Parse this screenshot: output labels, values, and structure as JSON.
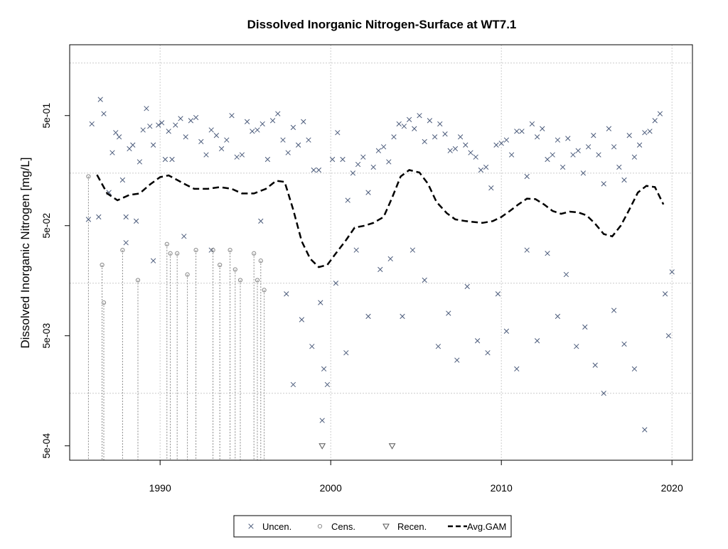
{
  "chart_data": {
    "type": "scatter",
    "title": "Dissolved Inorganic Nitrogen-Surface at WT7.1",
    "xlabel": "",
    "ylabel": "Dissolved Inorganic Nitrogen [mg/L]",
    "y_scale": "log10",
    "xlim": [
      1984.7,
      2021.2
    ],
    "ylim": [
      0.00037,
      2.2
    ],
    "x_ticks": [
      1990,
      2000,
      2010,
      2020
    ],
    "x_tick_labels": [
      "1990",
      "2000",
      "2010",
      "2020"
    ],
    "y_ticks": [
      0.0005,
      0.005,
      0.05,
      0.5
    ],
    "y_tick_labels": [
      "5e-04",
      "5e-03",
      "5e-02",
      "5e-01"
    ],
    "y_grid": [
      0.0015,
      0.015,
      0.15,
      1.5
    ],
    "grid": true,
    "legend": {
      "position": "bottom-center",
      "entries": [
        {
          "label": "Uncen.",
          "symbol": "x",
          "color": "#4a5a7a"
        },
        {
          "label": "Cens.",
          "symbol": "o",
          "color": "#909090"
        },
        {
          "label": "Recen.",
          "symbol": "triangle-down",
          "color": "#555555"
        },
        {
          "label": "Avg.GAM",
          "symbol": "dashed-line",
          "color": "#000000"
        }
      ]
    },
    "series": [
      {
        "name": "Uncen.",
        "points": [
          [
            1985.8,
            0.057
          ],
          [
            1986.0,
            0.42
          ],
          [
            1986.5,
            0.7
          ],
          [
            1986.7,
            0.52
          ],
          [
            1987.0,
            0.1
          ],
          [
            1987.2,
            0.23
          ],
          [
            1987.4,
            0.35
          ],
          [
            1987.6,
            0.32
          ],
          [
            1987.8,
            0.13
          ],
          [
            1988.0,
            0.06
          ],
          [
            1988.2,
            0.25
          ],
          [
            1988.4,
            0.27
          ],
          [
            1988.6,
            0.055
          ],
          [
            1988.8,
            0.19
          ],
          [
            1989.0,
            0.37
          ],
          [
            1989.2,
            0.58
          ],
          [
            1989.4,
            0.4
          ],
          [
            1989.6,
            0.27
          ],
          [
            1989.9,
            0.41
          ],
          [
            1990.1,
            0.43
          ],
          [
            1990.3,
            0.2
          ],
          [
            1990.5,
            0.36
          ],
          [
            1990.7,
            0.2
          ],
          [
            1990.9,
            0.41
          ],
          [
            1991.2,
            0.47
          ],
          [
            1991.5,
            0.32
          ],
          [
            1991.8,
            0.45
          ],
          [
            1992.1,
            0.48
          ],
          [
            1992.4,
            0.29
          ],
          [
            1992.7,
            0.22
          ],
          [
            1993.0,
            0.37
          ],
          [
            1993.3,
            0.33
          ],
          [
            1993.6,
            0.25
          ],
          [
            1993.9,
            0.3
          ],
          [
            1994.2,
            0.5
          ],
          [
            1994.5,
            0.21
          ],
          [
            1994.8,
            0.22
          ],
          [
            1995.1,
            0.44
          ],
          [
            1995.4,
            0.36
          ],
          [
            1995.7,
            0.37
          ],
          [
            1996.0,
            0.42
          ],
          [
            1996.3,
            0.2
          ],
          [
            1996.6,
            0.45
          ],
          [
            1996.9,
            0.52
          ],
          [
            1997.2,
            0.3
          ],
          [
            1997.5,
            0.23
          ],
          [
            1997.8,
            0.39
          ],
          [
            1998.1,
            0.27
          ],
          [
            1998.4,
            0.44
          ],
          [
            1998.7,
            0.3
          ],
          [
            1999.0,
            0.16
          ],
          [
            1999.3,
            0.16
          ],
          [
            1999.5,
            0.00085
          ],
          [
            1999.6,
            0.0025
          ],
          [
            1999.8,
            0.0018
          ],
          [
            2000.1,
            0.2
          ],
          [
            2000.4,
            0.35
          ],
          [
            2000.7,
            0.2
          ],
          [
            2001.0,
            0.085
          ],
          [
            2001.3,
            0.15
          ],
          [
            2001.6,
            0.18
          ],
          [
            2001.9,
            0.21
          ],
          [
            2002.2,
            0.1
          ],
          [
            2002.5,
            0.17
          ],
          [
            2002.8,
            0.24
          ],
          [
            2003.1,
            0.26
          ],
          [
            2003.4,
            0.19
          ],
          [
            2003.7,
            0.32
          ],
          [
            2004.0,
            0.42
          ],
          [
            2004.3,
            0.4
          ],
          [
            2004.6,
            0.46
          ],
          [
            2004.9,
            0.38
          ],
          [
            2005.2,
            0.5
          ],
          [
            2005.5,
            0.29
          ],
          [
            2005.8,
            0.45
          ],
          [
            2006.1,
            0.32
          ],
          [
            2006.4,
            0.42
          ],
          [
            2006.7,
            0.34
          ],
          [
            2007.0,
            0.24
          ],
          [
            2007.3,
            0.25
          ],
          [
            2007.6,
            0.32
          ],
          [
            2007.9,
            0.27
          ],
          [
            2008.2,
            0.23
          ],
          [
            2008.5,
            0.21
          ],
          [
            2008.8,
            0.16
          ],
          [
            2009.1,
            0.17
          ],
          [
            2009.4,
            0.11
          ],
          [
            2009.7,
            0.27
          ],
          [
            2010.0,
            0.28
          ],
          [
            2010.3,
            0.3
          ],
          [
            2010.6,
            0.22
          ],
          [
            2010.9,
            0.36
          ],
          [
            2011.2,
            0.36
          ],
          [
            2011.5,
            0.14
          ],
          [
            2011.8,
            0.42
          ],
          [
            2012.1,
            0.32
          ],
          [
            2012.4,
            0.38
          ],
          [
            2012.7,
            0.2
          ],
          [
            2013.0,
            0.22
          ],
          [
            2013.3,
            0.3
          ],
          [
            2013.6,
            0.17
          ],
          [
            2013.9,
            0.31
          ],
          [
            2014.2,
            0.22
          ],
          [
            2014.5,
            0.24
          ],
          [
            2014.8,
            0.15
          ],
          [
            2015.1,
            0.26
          ],
          [
            2015.4,
            0.33
          ],
          [
            2015.7,
            0.22
          ],
          [
            2016.0,
            0.12
          ],
          [
            2016.3,
            0.38
          ],
          [
            2016.6,
            0.26
          ],
          [
            2016.9,
            0.17
          ],
          [
            2017.2,
            0.13
          ],
          [
            2017.5,
            0.33
          ],
          [
            2017.8,
            0.21
          ],
          [
            2018.1,
            0.27
          ],
          [
            2018.4,
            0.35
          ],
          [
            2018.7,
            0.36
          ],
          [
            2019.0,
            0.45
          ],
          [
            2019.3,
            0.52
          ],
          [
            2019.6,
            0.012
          ],
          [
            2019.8,
            0.005
          ],
          [
            2020.0,
            0.019
          ],
          [
            1986.4,
            0.06
          ],
          [
            1988.0,
            0.035
          ],
          [
            1989.6,
            0.024
          ],
          [
            1991.4,
            0.04
          ],
          [
            1993.0,
            0.03
          ],
          [
            1995.9,
            0.055
          ],
          [
            1997.4,
            0.012
          ],
          [
            1997.8,
            0.0018
          ],
          [
            1998.3,
            0.007
          ],
          [
            1998.9,
            0.004
          ],
          [
            1999.4,
            0.01
          ],
          [
            2000.3,
            0.015
          ],
          [
            2000.9,
            0.0035
          ],
          [
            2001.5,
            0.03
          ],
          [
            2002.2,
            0.0075
          ],
          [
            2002.9,
            0.02
          ],
          [
            2003.5,
            0.025
          ],
          [
            2004.2,
            0.0075
          ],
          [
            2004.8,
            0.03
          ],
          [
            2005.5,
            0.016
          ],
          [
            2006.3,
            0.004
          ],
          [
            2006.9,
            0.008
          ],
          [
            2007.4,
            0.003
          ],
          [
            2008.0,
            0.014
          ],
          [
            2008.6,
            0.0045
          ],
          [
            2009.2,
            0.0035
          ],
          [
            2009.8,
            0.012
          ],
          [
            2010.3,
            0.0055
          ],
          [
            2010.9,
            0.0025
          ],
          [
            2011.5,
            0.03
          ],
          [
            2012.1,
            0.0045
          ],
          [
            2012.7,
            0.028
          ],
          [
            2013.3,
            0.0075
          ],
          [
            2013.8,
            0.018
          ],
          [
            2014.4,
            0.004
          ],
          [
            2014.9,
            0.006
          ],
          [
            2015.5,
            0.0027
          ],
          [
            2016.0,
            0.0015
          ],
          [
            2016.6,
            0.0085
          ],
          [
            2017.2,
            0.0042
          ],
          [
            2017.8,
            0.0025
          ],
          [
            2018.4,
            0.0007
          ]
        ]
      },
      {
        "name": "Cens.",
        "points": [
          [
            1985.8,
            0.14
          ],
          [
            1986.6,
            0.022
          ],
          [
            1986.7,
            0.01
          ],
          [
            1987.8,
            0.03
          ],
          [
            1988.7,
            0.016
          ],
          [
            1990.4,
            0.034
          ],
          [
            1990.6,
            0.028
          ],
          [
            1991.0,
            0.028
          ],
          [
            1991.6,
            0.018
          ],
          [
            1992.1,
            0.03
          ],
          [
            1993.1,
            0.03
          ],
          [
            1993.5,
            0.022
          ],
          [
            1994.1,
            0.03
          ],
          [
            1994.4,
            0.02
          ],
          [
            1994.7,
            0.016
          ],
          [
            1995.5,
            0.028
          ],
          [
            1995.7,
            0.016
          ],
          [
            1995.9,
            0.024
          ],
          [
            1996.1,
            0.013
          ]
        ]
      },
      {
        "name": "Recen.",
        "points": [
          [
            1999.5,
            0.0005
          ],
          [
            2003.6,
            0.0005
          ]
        ]
      },
      {
        "name": "Avg.GAM",
        "points": [
          [
            1986.3,
            0.145
          ],
          [
            1986.9,
            0.098
          ],
          [
            1987.5,
            0.085
          ],
          [
            1988.2,
            0.095
          ],
          [
            1988.8,
            0.098
          ],
          [
            1989.4,
            0.118
          ],
          [
            1990.0,
            0.138
          ],
          [
            1990.5,
            0.143
          ],
          [
            1991.0,
            0.13
          ],
          [
            1991.5,
            0.118
          ],
          [
            1992.0,
            0.108
          ],
          [
            1992.8,
            0.108
          ],
          [
            1993.5,
            0.112
          ],
          [
            1994.2,
            0.108
          ],
          [
            1994.8,
            0.098
          ],
          [
            1995.5,
            0.098
          ],
          [
            1996.2,
            0.108
          ],
          [
            1996.8,
            0.128
          ],
          [
            1997.3,
            0.125
          ],
          [
            1997.8,
            0.07
          ],
          [
            1998.3,
            0.036
          ],
          [
            1998.8,
            0.025
          ],
          [
            1999.3,
            0.021
          ],
          [
            1999.8,
            0.022
          ],
          [
            2000.3,
            0.028
          ],
          [
            2000.9,
            0.037
          ],
          [
            2001.4,
            0.048
          ],
          [
            2002.0,
            0.05
          ],
          [
            2002.5,
            0.053
          ],
          [
            2003.1,
            0.06
          ],
          [
            2003.6,
            0.09
          ],
          [
            2004.1,
            0.14
          ],
          [
            2004.6,
            0.16
          ],
          [
            2005.2,
            0.152
          ],
          [
            2005.7,
            0.12
          ],
          [
            2006.2,
            0.082
          ],
          [
            2006.8,
            0.065
          ],
          [
            2007.3,
            0.057
          ],
          [
            2007.9,
            0.055
          ],
          [
            2008.4,
            0.054
          ],
          [
            2008.9,
            0.053
          ],
          [
            2009.5,
            0.055
          ],
          [
            2010.0,
            0.06
          ],
          [
            2010.5,
            0.068
          ],
          [
            2011.0,
            0.078
          ],
          [
            2011.5,
            0.088
          ],
          [
            2012.0,
            0.087
          ],
          [
            2012.5,
            0.078
          ],
          [
            2013.0,
            0.068
          ],
          [
            2013.5,
            0.064
          ],
          [
            2014.0,
            0.067
          ],
          [
            2014.5,
            0.066
          ],
          [
            2015.0,
            0.062
          ],
          [
            2015.5,
            0.052
          ],
          [
            2016.0,
            0.042
          ],
          [
            2016.5,
            0.04
          ],
          [
            2017.0,
            0.05
          ],
          [
            2017.5,
            0.07
          ],
          [
            2018.0,
            0.1
          ],
          [
            2018.5,
            0.115
          ],
          [
            2019.0,
            0.112
          ],
          [
            2019.5,
            0.078
          ]
        ]
      }
    ]
  }
}
